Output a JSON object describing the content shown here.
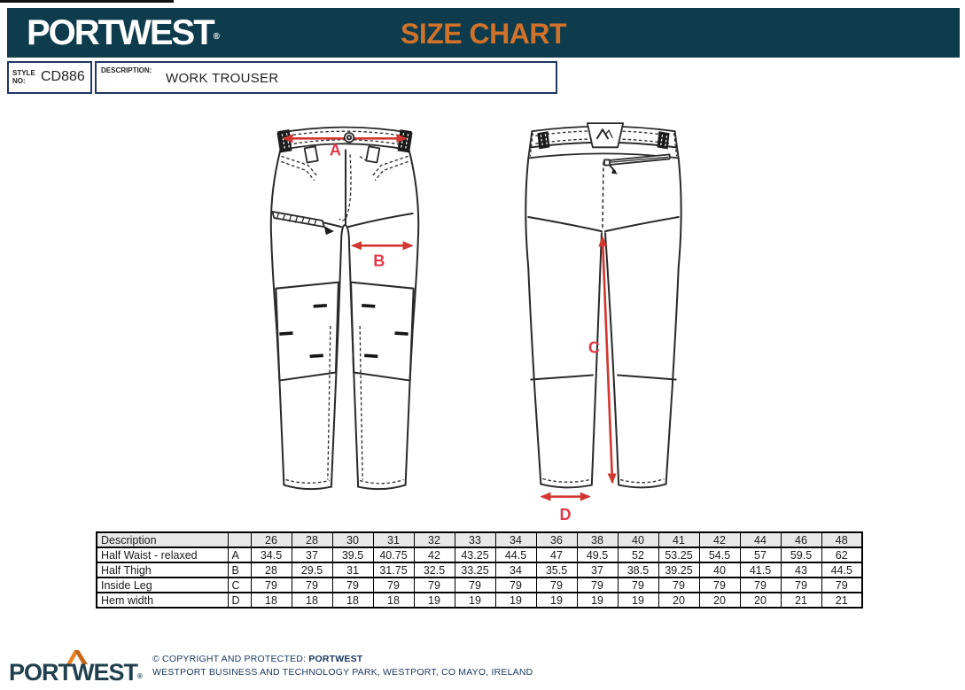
{
  "header": {
    "brand": "PORTWEST",
    "registered": "®",
    "title": "SIZE CHART"
  },
  "style_box": {
    "label_line1": "STYLE",
    "label_line2": "NO:",
    "value": "CD886"
  },
  "description_box": {
    "label": "DESCRIPTION:",
    "value": "WORK TROUSER"
  },
  "diagram": {
    "front": {
      "arrow_a_label": "A",
      "arrow_b_label": "B"
    },
    "back": {
      "arrow_c_label": "C",
      "arrow_d_label": "D"
    }
  },
  "size_table": {
    "header_label": "Description",
    "sizes": [
      "26",
      "28",
      "30",
      "31",
      "32",
      "33",
      "34",
      "36",
      "38",
      "40",
      "41",
      "42",
      "44",
      "46",
      "48"
    ],
    "rows": [
      {
        "label": "Half Waist - relaxed",
        "letter": "A",
        "values": [
          "34.5",
          "37",
          "39.5",
          "40.75",
          "42",
          "43.25",
          "44.5",
          "47",
          "49.5",
          "52",
          "53.25",
          "54.5",
          "57",
          "59.5",
          "62"
        ]
      },
      {
        "label": "Half Thigh",
        "letter": "B",
        "values": [
          "28",
          "29.5",
          "31",
          "31.75",
          "32.5",
          "33.25",
          "34",
          "35.5",
          "37",
          "38.5",
          "39.25",
          "40",
          "41.5",
          "43",
          "44.5"
        ]
      },
      {
        "label": "Inside Leg",
        "letter": "C",
        "values": [
          "79",
          "79",
          "79",
          "79",
          "79",
          "79",
          "79",
          "79",
          "79",
          "79",
          "79",
          "79",
          "79",
          "79",
          "79"
        ]
      },
      {
        "label": "Hem width",
        "letter": "D",
        "values": [
          "18",
          "18",
          "18",
          "18",
          "19",
          "19",
          "19",
          "19",
          "19",
          "19",
          "20",
          "20",
          "20",
          "21",
          "21"
        ]
      }
    ]
  },
  "footer": {
    "logo": "PORTWEST",
    "registered": "®",
    "copyright_prefix": "© COPYRIGHT AND PROTECTED: ",
    "copyright_brand": "PORTWEST",
    "address": "WESTPORT BUSINESS AND TECHNOLOGY PARK, WESTPORT, CO MAYO, IRELAND"
  },
  "colors": {
    "header_bg": "#0e3c4c",
    "title_orange": "#d1722a",
    "box_border": "#1f3864",
    "arrow_red": "#d23831",
    "label_red": "#e2394b",
    "footer_navy": "#17375e",
    "logo_teal": "#21404e",
    "table_header_bg": "#e8e8e8",
    "line": "#2a2a2a",
    "chevron_orange_light": "#e78223",
    "chevron_orange_dark": "#c5661b"
  }
}
